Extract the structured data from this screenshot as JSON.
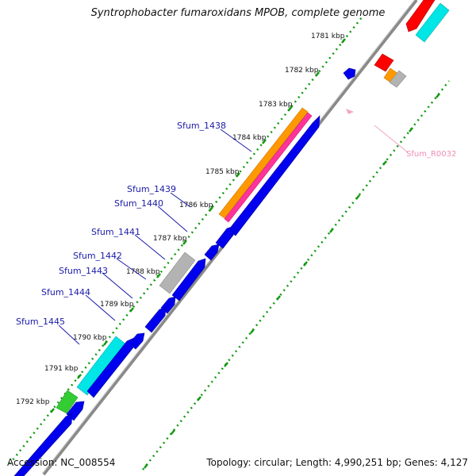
{
  "header": {
    "title": "Syntrophobacter fumaroxidans MPOB, complete genome"
  },
  "footer": {
    "accession": "Accession: NC_008554",
    "summary": "Topology: circular; Length: 4,990,251 bp; Genes: 4,127"
  },
  "ruler_labels": [
    "1781 kbp",
    "1782 kbp",
    "1783 kbp",
    "1784 kbp",
    "1785 kbp",
    "1786 kbp",
    "1787 kbp",
    "1788 kbp",
    "1789 kbp",
    "1790 kbp",
    "1791 kbp",
    "1792 kbp"
  ],
  "gene_labels": [
    "Sfum_1438",
    "Sfum_1439",
    "Sfum_1440",
    "Sfum_1441",
    "Sfum_1442",
    "Sfum_1443",
    "Sfum_1444",
    "Sfum_1445",
    "Sfum_R0032"
  ],
  "colors": {
    "cds": "#0000ee",
    "rna": "#ff0000",
    "orange": "#ff9900",
    "pink": "#ff3399",
    "cyan": "#00e5e5",
    "grey": "#b3b3b3",
    "green": "#33cc33",
    "dots": "#119911"
  }
}
